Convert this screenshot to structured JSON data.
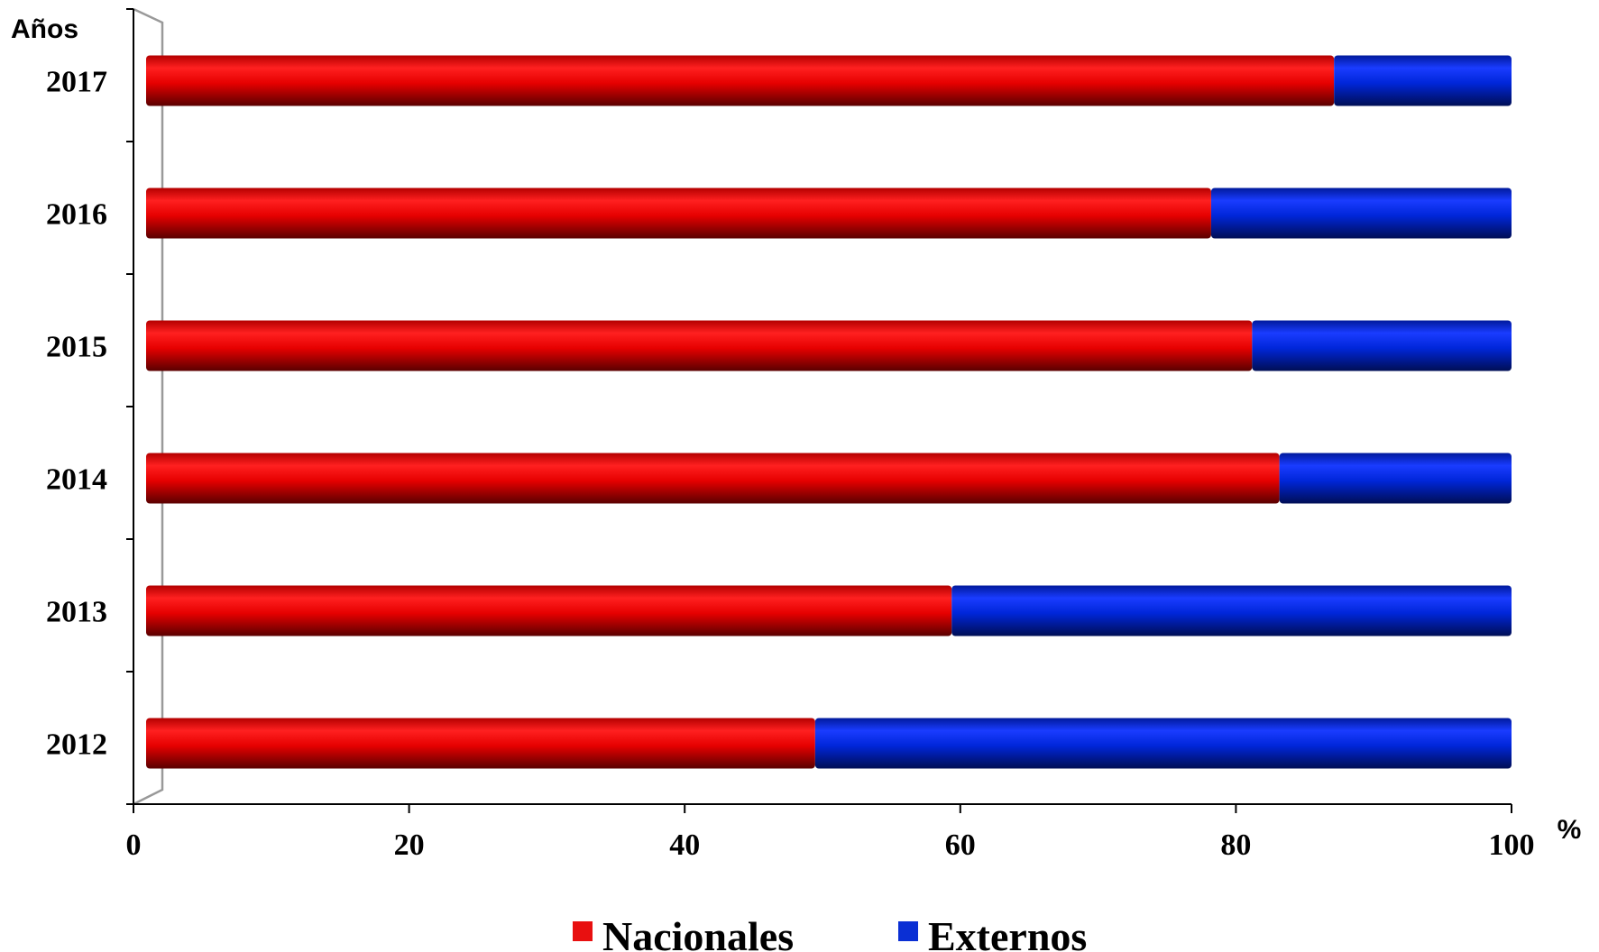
{
  "chart_data": {
    "type": "bar",
    "orientation": "horizontal",
    "stacked": true,
    "categories": [
      "2012",
      "2013",
      "2014",
      "2015",
      "2016",
      "2017"
    ],
    "series": [
      {
        "name": "Nacionales",
        "values": [
          49,
          59,
          83,
          81,
          78,
          87
        ],
        "color": "#e81010"
      },
      {
        "name": "Externos",
        "values": [
          51,
          41,
          17,
          19,
          22,
          13
        ],
        "color": "#0a2fd4"
      }
    ],
    "xlim": [
      0,
      100
    ],
    "xticks": [
      "0",
      "20",
      "40",
      "60",
      "80",
      "100"
    ],
    "xlabel": "%",
    "ylabel": "Años",
    "grid": false,
    "legend_position": "bottom"
  }
}
